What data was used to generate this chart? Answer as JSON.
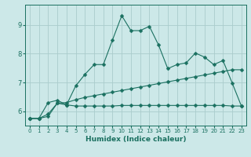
{
  "xlabel": "Humidex (Indice chaleur)",
  "background_color": "#cce8e8",
  "grid_color": "#aacccc",
  "line_color": "#1a7060",
  "xlim": [
    -0.5,
    23.5
  ],
  "ylim": [
    5.5,
    9.7
  ],
  "yticks": [
    6,
    7,
    8,
    9
  ],
  "xticks": [
    0,
    1,
    2,
    3,
    4,
    5,
    6,
    7,
    8,
    9,
    10,
    11,
    12,
    13,
    14,
    15,
    16,
    17,
    18,
    19,
    20,
    21,
    22,
    23
  ],
  "series1_x": [
    0,
    1,
    2,
    3,
    4,
    5,
    6,
    7,
    8,
    9,
    10,
    11,
    12,
    13,
    14,
    15,
    16,
    17,
    18,
    19,
    20,
    21,
    22,
    23
  ],
  "series1_y": [
    5.75,
    5.75,
    5.82,
    6.28,
    6.22,
    6.18,
    6.18,
    6.18,
    6.18,
    6.18,
    6.2,
    6.2,
    6.2,
    6.2,
    6.2,
    6.2,
    6.2,
    6.2,
    6.2,
    6.2,
    6.2,
    6.2,
    6.18,
    6.18
  ],
  "series2_x": [
    0,
    1,
    2,
    3,
    4,
    5,
    6,
    7,
    8,
    9,
    10,
    11,
    12,
    13,
    14,
    15,
    16,
    17,
    18,
    19,
    20,
    21,
    22,
    23
  ],
  "series2_y": [
    5.75,
    5.75,
    5.9,
    6.28,
    6.3,
    6.4,
    6.48,
    6.54,
    6.6,
    6.66,
    6.72,
    6.78,
    6.84,
    6.9,
    6.96,
    7.02,
    7.08,
    7.14,
    7.2,
    7.26,
    7.32,
    7.38,
    7.44,
    7.44
  ],
  "series3_x": [
    0,
    1,
    2,
    3,
    4,
    5,
    6,
    7,
    8,
    9,
    10,
    11,
    12,
    13,
    14,
    15,
    16,
    17,
    18,
    19,
    20,
    21,
    22,
    23
  ],
  "series3_y": [
    5.75,
    5.75,
    6.3,
    6.38,
    6.22,
    6.88,
    7.28,
    7.62,
    7.62,
    8.48,
    9.32,
    8.8,
    8.8,
    8.95,
    8.3,
    7.48,
    7.62,
    7.68,
    8.02,
    7.88,
    7.62,
    7.76,
    6.98,
    6.18
  ],
  "marker": "D",
  "marker_size": 2.5
}
